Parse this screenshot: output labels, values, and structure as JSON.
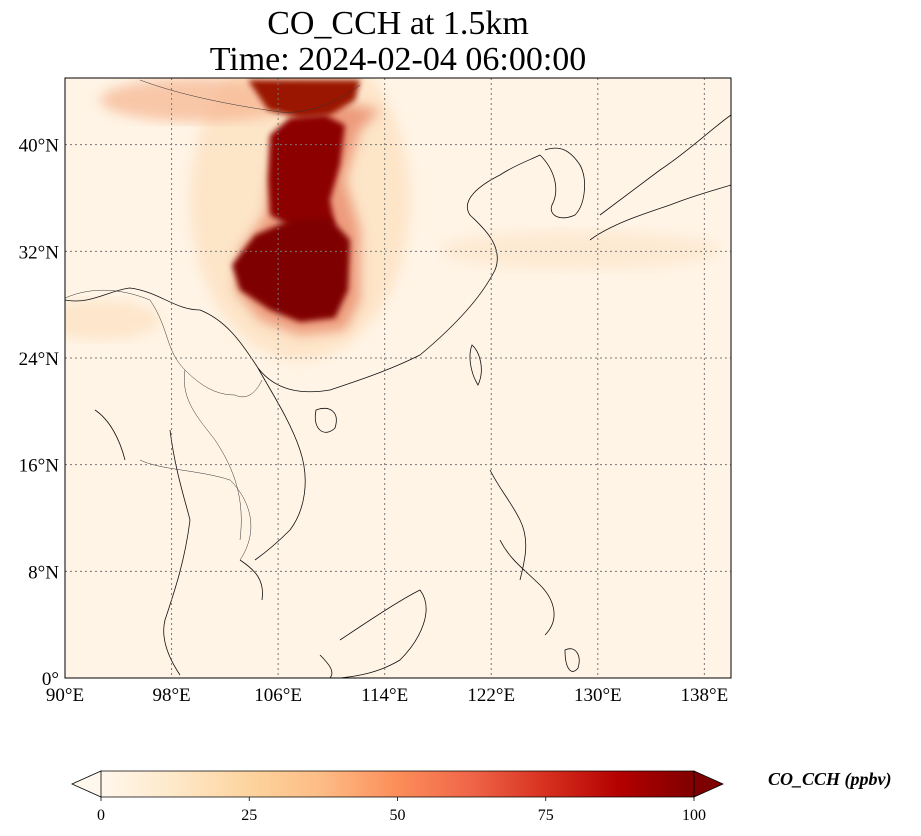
{
  "title": {
    "line1": "CO_CCH at 1.5km",
    "line2": "Time: 2024-02-04 06:00:00"
  },
  "map": {
    "variable": "CO_CCH",
    "level": "1.5km",
    "time": "2024-02-04 06:00:00",
    "lon_range": [
      90,
      140
    ],
    "lat_range": [
      0,
      45
    ],
    "lat_ticks": [
      {
        "value": 0,
        "label": "0°"
      },
      {
        "value": 8,
        "label": "8°N"
      },
      {
        "value": 16,
        "label": "16°N"
      },
      {
        "value": 24,
        "label": "24°N"
      },
      {
        "value": 32,
        "label": "32°N"
      },
      {
        "value": 40,
        "label": "40°N"
      }
    ],
    "lon_ticks": [
      {
        "value": 90,
        "label": "90°E"
      },
      {
        "value": 98,
        "label": "98°E"
      },
      {
        "value": 106,
        "label": "106°E"
      },
      {
        "value": 114,
        "label": "114°E"
      },
      {
        "value": 122,
        "label": "122°E"
      },
      {
        "value": 130,
        "label": "130°E"
      },
      {
        "value": 138,
        "label": "138°E"
      }
    ],
    "gridlines": true,
    "colormap": "OrRd",
    "plume_features": [
      {
        "name": "core",
        "lon_range": [
          102.5,
          108.5
        ],
        "lat_range": [
          27.5,
          33.5
        ],
        "value": 100
      },
      {
        "name": "northern-band",
        "lon_range": [
          105.5,
          109.5
        ],
        "lat_range": [
          33.5,
          42
        ],
        "value": 95
      },
      {
        "name": "northern-tip",
        "lon_range": [
          104,
          112
        ],
        "lat_range": [
          41,
          45
        ],
        "value": 85
      }
    ]
  },
  "colorbar": {
    "label": "CO_CCH (ppbv)",
    "ticks": [
      {
        "value": 0,
        "label": "0"
      },
      {
        "value": 25,
        "label": "25"
      },
      {
        "value": 50,
        "label": "50"
      },
      {
        "value": 75,
        "label": "75"
      },
      {
        "value": 100,
        "label": "100"
      }
    ],
    "range": [
      0,
      100
    ],
    "extend": "both",
    "colors": [
      "#fff7ec",
      "#fee8c8",
      "#fdd49e",
      "#fdbb84",
      "#fc8d59",
      "#ef6548",
      "#d7301f",
      "#b30000",
      "#7f0000"
    ]
  }
}
